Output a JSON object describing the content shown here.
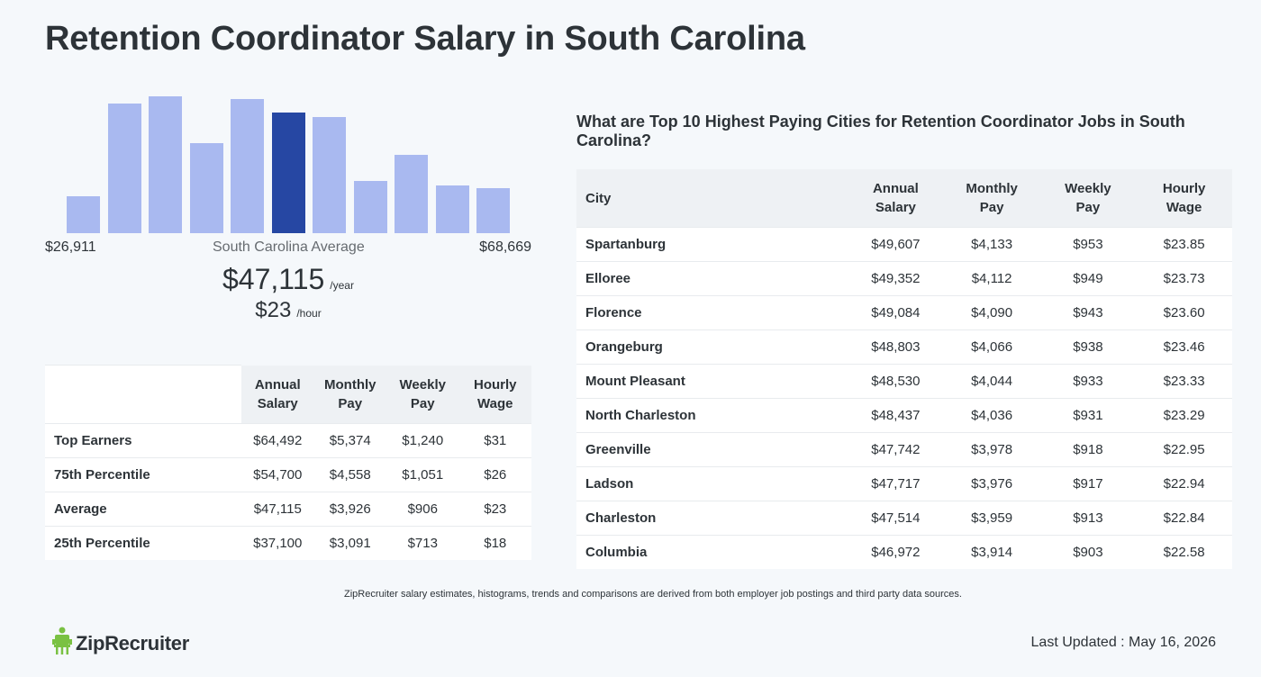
{
  "title": "Retention Coordinator Salary in South Carolina",
  "histogram": {
    "min_label": "$26,911",
    "max_label": "$68,669",
    "avg_label": "South Carolina Average",
    "active_index": 5,
    "accent_color": "#2647a3",
    "bar_color": "#a9b9f0",
    "relative_heights": [
      0.27,
      0.95,
      1.0,
      0.66,
      0.98,
      0.88,
      0.85,
      0.38,
      0.57,
      0.35,
      0.33
    ]
  },
  "average": {
    "year_value": "$47,115",
    "year_unit": "/year",
    "hour_value": "$23",
    "hour_unit": "/hour"
  },
  "percentile_table": {
    "headers": [
      "",
      "Annual Salary",
      "Monthly Pay",
      "Weekly Pay",
      "Hourly Wage"
    ],
    "rows": [
      [
        "Top Earners",
        "$64,492",
        "$5,374",
        "$1,240",
        "$31"
      ],
      [
        "75th Percentile",
        "$54,700",
        "$4,558",
        "$1,051",
        "$26"
      ],
      [
        "Average",
        "$47,115",
        "$3,926",
        "$906",
        "$23"
      ],
      [
        "25th Percentile",
        "$37,100",
        "$3,091",
        "$713",
        "$18"
      ]
    ]
  },
  "cities": {
    "title": "What are Top 10 Highest Paying Cities for Retention Coordinator Jobs in South Carolina?",
    "headers": [
      "City",
      "Annual Salary",
      "Monthly Pay",
      "Weekly Pay",
      "Hourly Wage"
    ],
    "rows": [
      [
        "Spartanburg",
        "$49,607",
        "$4,133",
        "$953",
        "$23.85"
      ],
      [
        "Elloree",
        "$49,352",
        "$4,112",
        "$949",
        "$23.73"
      ],
      [
        "Florence",
        "$49,084",
        "$4,090",
        "$943",
        "$23.60"
      ],
      [
        "Orangeburg",
        "$48,803",
        "$4,066",
        "$938",
        "$23.46"
      ],
      [
        "Mount Pleasant",
        "$48,530",
        "$4,044",
        "$933",
        "$23.33"
      ],
      [
        "North Charleston",
        "$48,437",
        "$4,036",
        "$931",
        "$23.29"
      ],
      [
        "Greenville",
        "$47,742",
        "$3,978",
        "$918",
        "$22.95"
      ],
      [
        "Ladson",
        "$47,717",
        "$3,976",
        "$917",
        "$22.94"
      ],
      [
        "Charleston",
        "$47,514",
        "$3,959",
        "$913",
        "$22.84"
      ],
      [
        "Columbia",
        "$46,972",
        "$3,914",
        "$903",
        "$22.58"
      ]
    ]
  },
  "disclaimer": "ZipRecruiter salary estimates, histograms, trends and comparisons are derived from both employer job postings and third party data sources.",
  "logo": {
    "text": "ZipRecruiter",
    "icon": "chair-icon",
    "color": "#7ac143"
  },
  "last_updated": "Last Updated : May 16, 2026"
}
